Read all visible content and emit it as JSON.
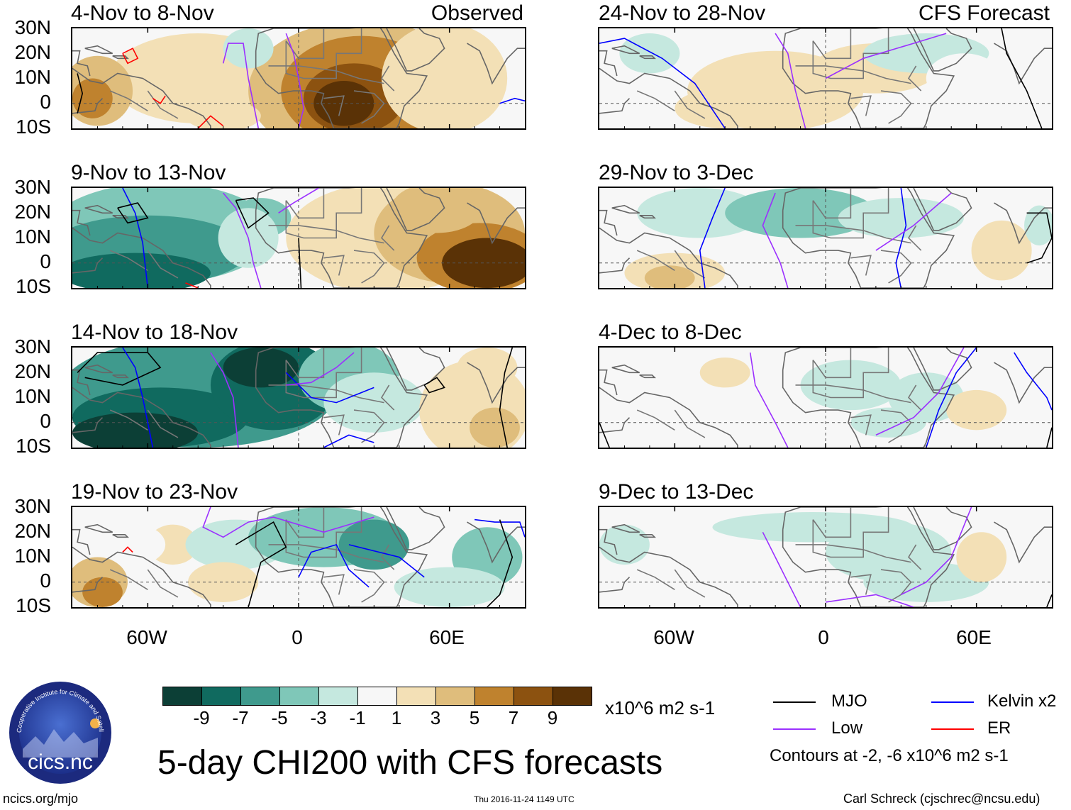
{
  "figure_title": "5-day CHI200 with CFS forecasts",
  "panel_tags": {
    "observed": "Observed",
    "forecast": "CFS Forecast"
  },
  "panels": [
    {
      "title": "4-Nov to 8-Nov",
      "pattern": "obs1"
    },
    {
      "title": "9-Nov to 13-Nov",
      "pattern": "obs2"
    },
    {
      "title": "14-Nov to 18-Nov",
      "pattern": "obs3"
    },
    {
      "title": "19-Nov to 23-Nov",
      "pattern": "obs4"
    },
    {
      "title": "24-Nov to 28-Nov",
      "pattern": "fc1"
    },
    {
      "title": "29-Nov to 3-Dec",
      "pattern": "fc2"
    },
    {
      "title": "4-Dec to 8-Dec",
      "pattern": "fc3"
    },
    {
      "title": "9-Dec to 13-Dec",
      "pattern": "fc4"
    }
  ],
  "lat_labels": [
    "30N",
    "20N",
    "10N",
    "0",
    "10S"
  ],
  "lon_labels": [
    "60W",
    "0",
    "60E"
  ],
  "colorbar": {
    "units": "x10^6 m2 s-1",
    "ticks": [
      "-9",
      "-7",
      "-5",
      "-3",
      "-1",
      "1",
      "3",
      "5",
      "7",
      "9"
    ],
    "colors": [
      "#0c3f36",
      "#106a5f",
      "#3f9a8d",
      "#7fc7b8",
      "#c5e8df",
      "#f7f7f7",
      "#f3e0b6",
      "#dfbd7c",
      "#bf822e",
      "#8c5210",
      "#5a3206"
    ]
  },
  "legend": {
    "items": [
      {
        "label": "MJO",
        "color": "#000000"
      },
      {
        "label": "Kelvin x2",
        "color": "#0000ff"
      },
      {
        "label": "Low",
        "color": "#9b30ff"
      },
      {
        "label": "ER",
        "color": "#ff0000"
      }
    ],
    "note": "Contours at -2, -6 x10^6 m2 s-1"
  },
  "footer": {
    "url": "ncics.org/mjo",
    "timestamp": "Thu 2016-11-24 1149 UTC",
    "author": "Carl Schreck (cjschrec@ncsu.edu)"
  },
  "logo": {
    "text": "cics.nc",
    "ring_text": "Cooperative Institute for Climate and Satellites"
  }
}
